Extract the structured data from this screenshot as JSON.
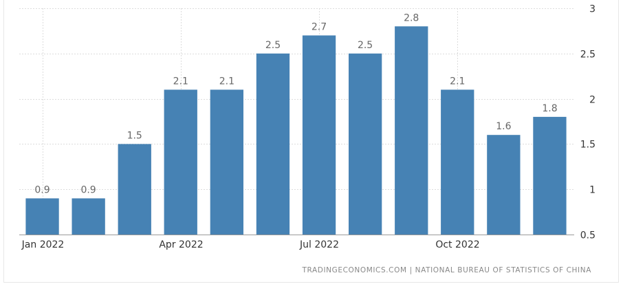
{
  "chart_data": {
    "type": "bar",
    "categories": [
      "Jan 2022",
      "Feb 2022",
      "Mar 2022",
      "Apr 2022",
      "May 2022",
      "Jun 2022",
      "Jul 2022",
      "Aug 2022",
      "Sep 2022",
      "Oct 2022",
      "Nov 2022",
      "Dec 2022"
    ],
    "values": [
      0.9,
      0.9,
      1.5,
      2.1,
      2.1,
      2.5,
      2.7,
      2.5,
      2.8,
      2.1,
      1.6,
      1.8
    ],
    "value_labels": [
      "0.9",
      "0.9",
      "1.5",
      "2.1",
      "2.1",
      "2.5",
      "2.7",
      "2.5",
      "2.8",
      "2.1",
      "1.6",
      "1.8"
    ],
    "x_tick_labels": [
      {
        "category_index": 0,
        "label": "Jan 2022"
      },
      {
        "category_index": 3,
        "label": "Apr 2022"
      },
      {
        "category_index": 6,
        "label": "Jul 2022"
      },
      {
        "category_index": 9,
        "label": "Oct 2022"
      }
    ],
    "y_ticks": [
      0.5,
      1,
      1.5,
      2,
      2.5,
      3
    ],
    "y_tick_labels": [
      "0.5",
      "1",
      "1.5",
      "2",
      "2.5",
      "3"
    ],
    "ylim": [
      0.5,
      3
    ],
    "y_axis_side": "right",
    "grid": true,
    "bar_color": "#4682b4",
    "title": "",
    "xlabel": "",
    "ylabel": ""
  },
  "source_text": "TRADINGECONOMICS.COM | NATIONAL BUREAU OF STATISTICS OF CHINA"
}
